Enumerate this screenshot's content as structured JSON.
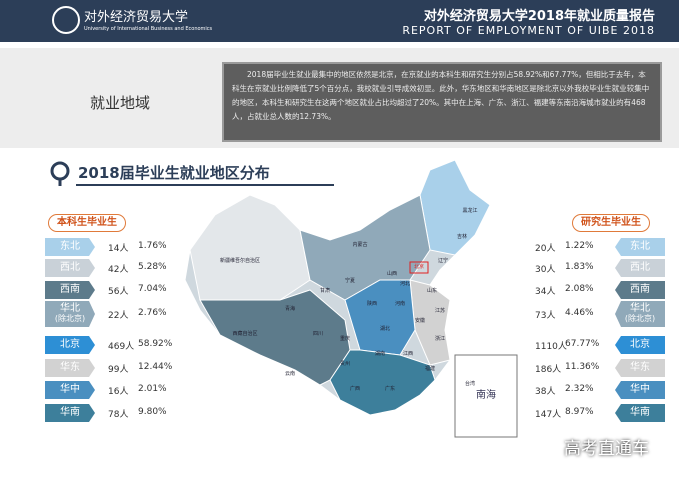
{
  "header": {
    "logo_cn": "对外经济贸易大学",
    "logo_en": "University of International Business and Economics",
    "title": "对外经济贸易大学2018年就业质量报告",
    "subtitle": "REPORT OF EMPLOYMENT OF UIBE 2018"
  },
  "intro": {
    "section": "就业地域",
    "text": "2018届毕业生就业最集中的地区依然是北京，在京就业的本科生和研究生分别占58.92%和67.77%，但相比于去年，本科生在京就业比例降低了5个百分点，我校就业引导成效初显。此外，华东地区和华南地区是除北京以外我校毕业生就业较集中的地区，本科生和研究生在这两个地区就业占比均超过了20%。其中在上海、广东、浙江、福建等东南沿海城市就业的有468人，占就业总人数的12.73%。"
  },
  "heading": "2018届毕业生就业地区分布",
  "undergrad": {
    "label": "本科生毕业生",
    "rows": [
      {
        "region": "东北",
        "count": "14人",
        "pct": "1.76%",
        "color": "#a9d0ea"
      },
      {
        "region": "西北",
        "count": "42人",
        "pct": "5.28%",
        "color": "#c9d1d8"
      },
      {
        "region": "西南",
        "count": "56人",
        "pct": "7.04%",
        "color": "#5d7b8b"
      },
      {
        "region": "华北",
        "note": "(除北京)",
        "count": "22人",
        "pct": "2.76%",
        "color": "#90a9b9"
      },
      {
        "region": "北京",
        "count": "469人",
        "pct": "58.92%",
        "color": "#2d8fd5"
      },
      {
        "region": "华东",
        "count": "99人",
        "pct": "12.44%",
        "color": "#d2d2d2"
      },
      {
        "region": "华中",
        "count": "16人",
        "pct": "2.01%",
        "color": "#4a8fc0"
      },
      {
        "region": "华南",
        "count": "78人",
        "pct": "9.80%",
        "color": "#3d7f9b"
      }
    ]
  },
  "graduate": {
    "label": "研究生毕业生",
    "rows": [
      {
        "region": "东北",
        "count": "20人",
        "pct": "1.22%",
        "color": "#a9d0ea"
      },
      {
        "region": "西北",
        "count": "30人",
        "pct": "1.83%",
        "color": "#c9d1d8"
      },
      {
        "region": "西南",
        "count": "34人",
        "pct": "2.08%",
        "color": "#5d7b8b"
      },
      {
        "region": "华北",
        "note": "(除北京)",
        "count": "73人",
        "pct": "4.46%",
        "color": "#90a9b9"
      },
      {
        "region": "北京",
        "count": "1110人",
        "pct": "67.77%",
        "color": "#2d8fd5"
      },
      {
        "region": "华东",
        "count": "186人",
        "pct": "11.36%",
        "color": "#d2d2d2"
      },
      {
        "region": "华中",
        "count": "38人",
        "pct": "2.32%",
        "color": "#4a8fc0"
      },
      {
        "region": "华南",
        "count": "147人",
        "pct": "8.97%",
        "color": "#3d7f9b"
      }
    ]
  },
  "map": {
    "labels": [
      "黑龙江",
      "吉林",
      "辽宁",
      "内蒙古",
      "新疆维吾尔自治区",
      "西藏自治区",
      "青海",
      "甘肃",
      "宁夏",
      "陕西",
      "山西",
      "河北",
      "北京",
      "山东",
      "河南",
      "江苏",
      "四川",
      "湖北",
      "安徽",
      "重庆",
      "湖南",
      "江西",
      "浙江",
      "贵州",
      "云南",
      "广西",
      "广东",
      "福建",
      "台湾"
    ],
    "inset": "南海"
  },
  "watermark": "高考直通车"
}
